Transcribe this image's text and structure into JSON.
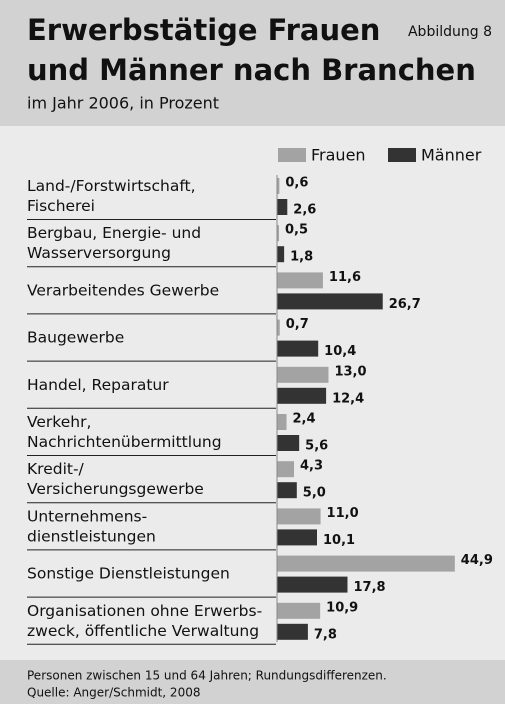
{
  "chart_data": {
    "type": "hbar",
    "title": [
      "Erwerbstätige Frauen",
      "und Männer nach Branchen"
    ],
    "figure_label": "Abbildung 8",
    "subtitle": "im Jahr 2006, in Prozent",
    "notes": [
      "Personen zwischen 15 und 64 Jahren; Rundungsdifferenzen.",
      "Quelle: Anger/Schmidt, 2008"
    ],
    "categories": [
      [
        "Land-/Forstwirtschaft,",
        "Fischerei"
      ],
      [
        "Bergbau, Energie- und",
        "Wasserversorgung"
      ],
      [
        "Verarbeitendes Gewerbe"
      ],
      [
        "Baugewerbe"
      ],
      [
        "Handel, Reparatur"
      ],
      [
        "Verkehr,",
        "Nachrichtenübermittlung"
      ],
      [
        "Kredit-/",
        "Versicherungsgewerbe"
      ],
      [
        "Unternehmens-",
        "dienstleistungen"
      ],
      [
        "Sonstige Dienstleistungen"
      ],
      [
        "Organisationen ohne Erwerbs-",
        "zweck, öffentliche Verwaltung"
      ]
    ],
    "series": [
      {
        "name": "Frauen",
        "color": "#a3a3a3",
        "values": [
          0.6,
          0.5,
          11.6,
          0.7,
          13.0,
          2.4,
          4.3,
          11.0,
          44.9,
          10.9
        ],
        "value_labels": [
          "0,6",
          "0,5",
          "11,6",
          "0,7",
          "13,0",
          "2,4",
          "4,3",
          "11,0",
          "44,9",
          "10,9"
        ]
      },
      {
        "name": "Männer",
        "color": "#333333",
        "values": [
          2.6,
          1.8,
          26.7,
          10.4,
          12.4,
          5.6,
          5.0,
          10.1,
          17.8,
          7.8
        ],
        "value_labels": [
          "2,6",
          "1,8",
          "26,7",
          "10,4",
          "12,4",
          "5,6",
          "5,0",
          "10,1",
          "17,8",
          "7,8"
        ]
      }
    ],
    "legend": "top-right"
  }
}
